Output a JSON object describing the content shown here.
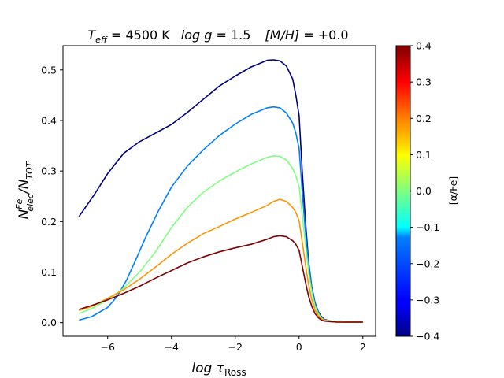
{
  "chart_data": {
    "type": "line",
    "title_parts": {
      "teff_sym": "T",
      "teff_sub": "eff",
      "teff_val": " = 4500 K",
      "logg_sym": "log g",
      "logg_val": " = 1.5",
      "mh_sym": "[M/H]",
      "mh_val": " = +0.0"
    },
    "xlabel_parts": {
      "main": "log τ",
      "sub": "Ross"
    },
    "ylabel_parts": {
      "N": "N",
      "sup": "Fe",
      "sub": "elec",
      "rest": "/N",
      "sub2": "TOT"
    },
    "xlim": [
      -7.4,
      2.4
    ],
    "ylim": [
      -0.027,
      0.548
    ],
    "xticks": [
      -6,
      -4,
      -2,
      0,
      2
    ],
    "xtick_labels": [
      "−6",
      "−4",
      "−2",
      "0",
      "2"
    ],
    "yticks": [
      0.0,
      0.1,
      0.2,
      0.3,
      0.4,
      0.5
    ],
    "ytick_labels": [
      "0.0",
      "0.1",
      "0.2",
      "0.3",
      "0.4",
      "0.5"
    ],
    "colorbar": {
      "label": "[α/Fe]",
      "range": [
        -0.4,
        0.4
      ],
      "ticks": [
        -0.4,
        -0.3,
        -0.2,
        -0.1,
        0.0,
        0.1,
        0.2,
        0.3,
        0.4
      ],
      "tick_labels": [
        "−0.4",
        "−0.3",
        "−0.2",
        "−0.1",
        "0.0",
        "0.1",
        "0.2",
        "0.3",
        "0.4"
      ],
      "colormap": "jet"
    },
    "series": [
      {
        "name": "[α/Fe] = -0.4",
        "alpha_fe": -0.4,
        "color": "#00007f",
        "x": [
          -6.9,
          -6.7,
          -6.4,
          -6.0,
          -5.5,
          -5.0,
          -4.5,
          -4.0,
          -3.5,
          -3.0,
          -2.5,
          -2.0,
          -1.5,
          -1.0,
          -0.8,
          -0.6,
          -0.4,
          -0.2,
          -0.1,
          0.0,
          0.1,
          0.2,
          0.3,
          0.4,
          0.5,
          0.6,
          0.7,
          0.8,
          1.0,
          1.2,
          1.5,
          2.0
        ],
        "values": [
          0.21,
          0.228,
          0.255,
          0.295,
          0.335,
          0.358,
          0.375,
          0.392,
          0.416,
          0.442,
          0.468,
          0.488,
          0.506,
          0.519,
          0.52,
          0.518,
          0.508,
          0.482,
          0.45,
          0.41,
          0.3,
          0.2,
          0.12,
          0.07,
          0.04,
          0.022,
          0.012,
          0.006,
          0.003,
          0.002,
          0.001,
          0.001
        ]
      },
      {
        "name": "[α/Fe] = -0.2",
        "alpha_fe": -0.2,
        "color": "#007fff",
        "x": [
          -6.9,
          -6.5,
          -6.0,
          -5.7,
          -5.4,
          -5.1,
          -4.8,
          -4.4,
          -4.0,
          -3.5,
          -3.0,
          -2.5,
          -2.0,
          -1.5,
          -1.0,
          -0.8,
          -0.6,
          -0.4,
          -0.2,
          -0.1,
          0.0,
          0.1,
          0.2,
          0.3,
          0.4,
          0.5,
          0.6,
          0.7,
          0.8,
          1.0,
          1.2,
          1.5,
          2.0
        ],
        "values": [
          0.005,
          0.012,
          0.03,
          0.052,
          0.085,
          0.127,
          0.17,
          0.222,
          0.268,
          0.31,
          0.342,
          0.37,
          0.393,
          0.412,
          0.425,
          0.427,
          0.425,
          0.415,
          0.395,
          0.375,
          0.345,
          0.26,
          0.18,
          0.115,
          0.068,
          0.038,
          0.02,
          0.01,
          0.005,
          0.003,
          0.002,
          0.001,
          0.001
        ]
      },
      {
        "name": "[α/Fe] = 0.0",
        "alpha_fe": 0.0,
        "color": "#7fff7f",
        "x": [
          -6.9,
          -6.5,
          -6.0,
          -5.5,
          -5.0,
          -4.5,
          -4.0,
          -3.5,
          -3.0,
          -2.5,
          -2.0,
          -1.5,
          -1.0,
          -0.8,
          -0.6,
          -0.4,
          -0.2,
          -0.1,
          0.0,
          0.1,
          0.2,
          0.3,
          0.4,
          0.5,
          0.6,
          0.7,
          0.8,
          1.0,
          1.2,
          1.5,
          2.0
        ],
        "values": [
          0.018,
          0.028,
          0.045,
          0.068,
          0.1,
          0.14,
          0.188,
          0.228,
          0.258,
          0.28,
          0.298,
          0.314,
          0.327,
          0.33,
          0.329,
          0.322,
          0.305,
          0.29,
          0.27,
          0.215,
          0.155,
          0.1,
          0.06,
          0.033,
          0.018,
          0.009,
          0.005,
          0.003,
          0.002,
          0.001,
          0.001
        ]
      },
      {
        "name": "[α/Fe] = +0.2",
        "alpha_fe": 0.2,
        "color": "#ff9400",
        "x": [
          -6.9,
          -6.5,
          -6.0,
          -5.5,
          -5.0,
          -4.5,
          -4.0,
          -3.5,
          -3.0,
          -2.5,
          -2.0,
          -1.5,
          -1.0,
          -0.8,
          -0.6,
          -0.4,
          -0.2,
          -0.1,
          0.0,
          0.1,
          0.2,
          0.3,
          0.4,
          0.5,
          0.6,
          0.7,
          0.8,
          1.0,
          1.2,
          1.5,
          2.0
        ],
        "values": [
          0.024,
          0.032,
          0.048,
          0.065,
          0.086,
          0.11,
          0.135,
          0.157,
          0.176,
          0.19,
          0.205,
          0.218,
          0.232,
          0.24,
          0.244,
          0.24,
          0.228,
          0.218,
          0.202,
          0.16,
          0.115,
          0.075,
          0.045,
          0.025,
          0.014,
          0.007,
          0.004,
          0.002,
          0.001,
          0.001,
          0.001
        ]
      },
      {
        "name": "[α/Fe] = +0.4",
        "alpha_fe": 0.4,
        "color": "#7f0000",
        "x": [
          -6.9,
          -6.5,
          -6.0,
          -5.5,
          -5.0,
          -4.5,
          -4.0,
          -3.5,
          -3.0,
          -2.5,
          -2.0,
          -1.5,
          -1.0,
          -0.8,
          -0.6,
          -0.4,
          -0.2,
          -0.1,
          0.0,
          0.1,
          0.2,
          0.3,
          0.4,
          0.5,
          0.6,
          0.7,
          0.8,
          1.0,
          1.2,
          1.5,
          2.0
        ],
        "values": [
          0.026,
          0.034,
          0.045,
          0.058,
          0.072,
          0.088,
          0.103,
          0.118,
          0.13,
          0.14,
          0.148,
          0.155,
          0.165,
          0.17,
          0.172,
          0.17,
          0.162,
          0.155,
          0.143,
          0.112,
          0.08,
          0.052,
          0.032,
          0.018,
          0.01,
          0.005,
          0.003,
          0.002,
          0.001,
          0.001,
          0.001
        ]
      }
    ]
  }
}
